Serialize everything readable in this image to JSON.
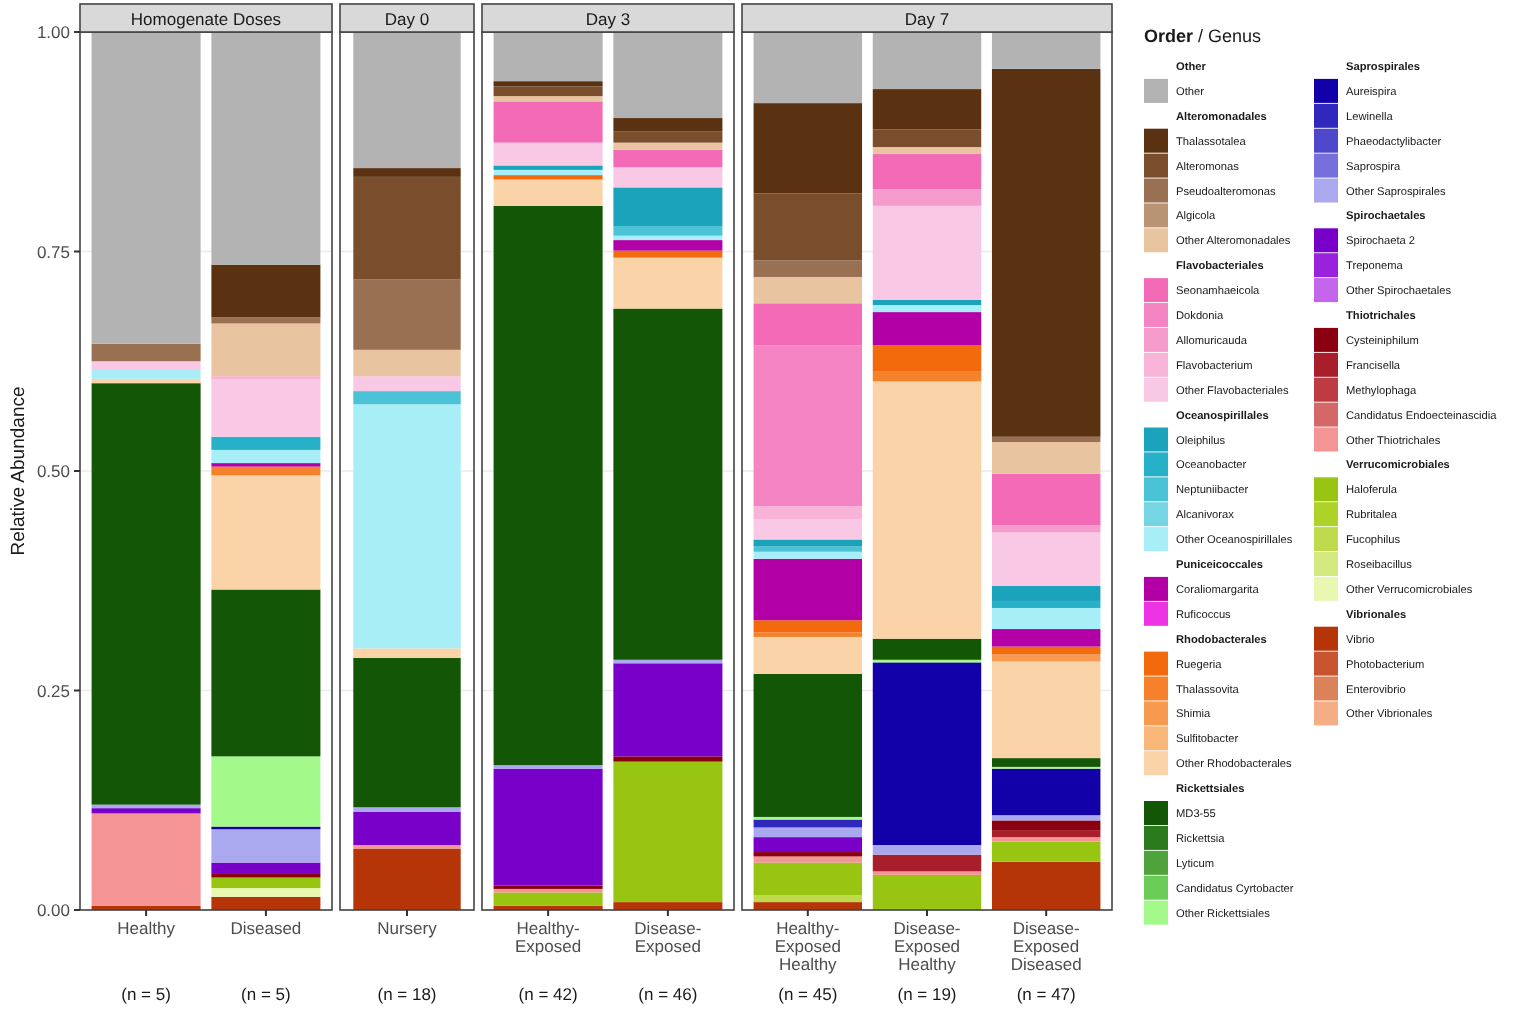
{
  "chart_data": [
    {
      "type": "bar",
      "stacked": true,
      "title": "Homogenate Doses",
      "ylabel": "Relative Abundance",
      "categories": [
        "Healthy",
        "Diseased"
      ],
      "ylim": [
        0,
        1
      ],
      "yticks": [
        {
          "value": 0,
          "label": "0.00"
        },
        {
          "value": 0.25,
          "label": "0.25"
        },
        {
          "value": 0.5,
          "label": "0.50"
        },
        {
          "value": 0.75,
          "label": "0.75"
        },
        {
          "value": 1,
          "label": "1.00"
        }
      ],
      "grid": true,
      "legend": "right",
      "legend_title": "Order / Genus",
      "annotations": [
        "(n = 5)",
        "(n = 5)",
        "Other",
        "Alteromonadales",
        "Flavobacteriales",
        "Oceanospirillales",
        "Puniceicoccales",
        "Rhodobacterales",
        "Rickettsiales",
        "Saprospirales",
        "Spirochaetales",
        "Thiotrichales",
        "Verrucomicrobiales",
        "Vibrionales"
      ],
      "series": [
        {
          "name": "Other Vibrionales",
          "color": "#f4ad85",
          "values": [
            null,
            null
          ]
        },
        {
          "name": "Enterovibrio",
          "color": "#db825b",
          "values": [
            null,
            null
          ]
        },
        {
          "name": "Photobacterium",
          "color": "#c85430",
          "values": [
            null,
            null
          ]
        },
        {
          "name": "Vibrio",
          "color": "#b53508",
          "values": [
            0.005,
            0.015
          ]
        },
        {
          "name": "Other Verrucomicrobiales",
          "color": "#e8f8b0",
          "values": [
            null,
            0.01
          ]
        },
        {
          "name": "Roseibacillus",
          "color": "#d4e97f",
          "values": [
            null,
            null
          ]
        },
        {
          "name": "Fucophilus",
          "color": "#bfdb4d",
          "values": [
            null,
            null
          ]
        },
        {
          "name": "Rubritalea",
          "color": "#aed227",
          "values": [
            null,
            null
          ]
        },
        {
          "name": "Haloferula",
          "color": "#98c512",
          "values": [
            null,
            0.012
          ]
        },
        {
          "name": "Other Thiotrichales",
          "color": "#f49494",
          "values": [
            0.105,
            null
          ]
        },
        {
          "name": "Candidatus Endoecteinascidia",
          "color": "#d46767",
          "values": [
            null,
            null
          ]
        },
        {
          "name": "Methylophaga",
          "color": "#bd3c42",
          "values": [
            null,
            null
          ]
        },
        {
          "name": "Francisella",
          "color": "#a81e2a",
          "values": [
            null,
            null
          ]
        },
        {
          "name": "Cysteiniphilum",
          "color": "#8b0010",
          "values": [
            null,
            0.005
          ]
        },
        {
          "name": "Other Spirochaetales",
          "color": "#c466ec",
          "values": [
            null,
            null
          ]
        },
        {
          "name": "Treponema",
          "color": "#9a22dc",
          "values": [
            null,
            null
          ]
        },
        {
          "name": "Spirochaeta 2",
          "color": "#7800c8",
          "values": [
            0.006,
            0.012
          ]
        },
        {
          "name": "Other Saprospirales",
          "color": "#aaa8ee",
          "values": [
            0.004,
            0.038
          ]
        },
        {
          "name": "Saprospira",
          "color": "#7770dc",
          "values": [
            null,
            null
          ]
        },
        {
          "name": "Phaeodactylibacter",
          "color": "#5048cc",
          "values": [
            null,
            null
          ]
        },
        {
          "name": "Lewinella",
          "color": "#3028bd",
          "values": [
            null,
            null
          ]
        },
        {
          "name": "Aureispira",
          "color": "#1200a8",
          "values": [
            null,
            0.003
          ]
        },
        {
          "name": "Other Rickettsiales",
          "color": "#a3fa8a",
          "values": [
            null,
            0.08
          ]
        },
        {
          "name": "Candidatus Cyrtobacter",
          "color": "#6bcc57",
          "values": [
            null,
            null
          ]
        },
        {
          "name": "Lyticum",
          "color": "#4ea33a",
          "values": [
            null,
            null
          ]
        },
        {
          "name": "Rickettsia",
          "color": "#2b7a1e",
          "values": [
            null,
            null
          ]
        },
        {
          "name": "MD3-55",
          "color": "#135606",
          "values": [
            0.48,
            0.19
          ]
        },
        {
          "name": "Other Rhodobacterales",
          "color": "#fbd3a8",
          "values": [
            0.005,
            0.13
          ]
        },
        {
          "name": "Sulfitobacter",
          "color": "#f8b679",
          "values": [
            null,
            null
          ]
        },
        {
          "name": "Shimia",
          "color": "#f79a4f",
          "values": [
            null,
            null
          ]
        },
        {
          "name": "Thalassovita",
          "color": "#f5822b",
          "values": [
            null,
            0.01
          ]
        },
        {
          "name": "Ruegeria",
          "color": "#f36a0c",
          "values": [
            null,
            null
          ]
        },
        {
          "name": "Ruficoccus",
          "color": "#ee33e5",
          "values": [
            null,
            null
          ]
        },
        {
          "name": "Coraliomargarita",
          "color": "#b300a6",
          "values": [
            null,
            0.004
          ]
        },
        {
          "name": "Other Oceanospirillales",
          "color": "#a8eef7",
          "values": [
            0.01,
            0.015
          ]
        },
        {
          "name": "Alcanivorax",
          "color": "#76d5e3",
          "values": [
            null,
            null
          ]
        },
        {
          "name": "Neptuniibacter",
          "color": "#4bc3d6",
          "values": [
            null,
            null
          ]
        },
        {
          "name": "Oceanobacter",
          "color": "#27b1c8",
          "values": [
            null,
            0.015
          ]
        },
        {
          "name": "Oleiphilus",
          "color": "#1aa3bb",
          "values": [
            null,
            null
          ]
        },
        {
          "name": "Other Flavobacteriales",
          "color": "#f8c8e4",
          "values": [
            0.01,
            0.065
          ]
        },
        {
          "name": "Flavobacterium",
          "color": "#f7b3d8",
          "values": [
            null,
            0.004
          ]
        },
        {
          "name": "Allomuricauda",
          "color": "#f59ccc",
          "values": [
            null,
            null
          ]
        },
        {
          "name": "Dokdonia",
          "color": "#f584c2",
          "values": [
            null,
            null
          ]
        },
        {
          "name": "Seonamhaeicola",
          "color": "#f36bb7",
          "values": [
            null,
            null
          ]
        },
        {
          "name": "Other Alteromonadales",
          "color": "#e8c4a0",
          "values": [
            null,
            0.06
          ]
        },
        {
          "name": "Algicola",
          "color": "#b99372",
          "values": [
            null,
            null
          ]
        },
        {
          "name": "Pseudoalteromonas",
          "color": "#9a7052",
          "values": [
            0.02,
            0.007
          ]
        },
        {
          "name": "Alteromonas",
          "color": "#7a4e2d",
          "values": [
            null,
            null
          ]
        },
        {
          "name": "Thalassotalea",
          "color": "#5a3211",
          "values": [
            null,
            0.06
          ]
        },
        {
          "name": "Other",
          "color": "#b3b3b3",
          "values": [
            0.355,
            0.265
          ]
        }
      ]
    },
    {
      "type": "bar",
      "stacked": true,
      "title": "Day 0",
      "categories": [
        "Nursery"
      ],
      "ylim": [
        0,
        1
      ],
      "yticks": [
        0,
        0.25,
        0.5,
        0.75,
        1
      ],
      "grid": true,
      "tick_labels": "x",
      "annotations": [
        "(n = 18)"
      ],
      "series": [
        {
          "color": "#b53508",
          "values": [
            0.07
          ]
        },
        {
          "color": "#f49494",
          "values": [
            0.004
          ]
        },
        {
          "color": "#7800c8",
          "values": [
            0.038
          ]
        },
        {
          "color": "#aaa8ee",
          "values": [
            0.005
          ]
        },
        {
          "color": "#135606",
          "values": [
            0.17
          ]
        },
        {
          "color": "#fbd3a8",
          "values": [
            0.011
          ]
        },
        {
          "color": "#a8eef7",
          "values": [
            0.278
          ]
        },
        {
          "color": "#4bc3d6",
          "values": [
            0.015
          ]
        },
        {
          "color": "#f8c8e4",
          "values": [
            0.017
          ]
        },
        {
          "color": "#e8c4a0",
          "values": [
            0.03
          ]
        },
        {
          "color": "#9a7052",
          "values": [
            0.08
          ]
        },
        {
          "color": "#7a4e2d",
          "values": [
            0.117
          ]
        },
        {
          "color": "#5a3211",
          "values": [
            0.01
          ]
        },
        {
          "color": "#b3b3b3",
          "values": [
            0.155
          ]
        }
      ]
    },
    {
      "type": "bar",
      "stacked": true,
      "title": "Day 3",
      "categories": [
        "Healthy-Exposed",
        "Disease-Exposed"
      ],
      "ylim": [
        0,
        1
      ],
      "yticks": [
        0,
        0.25,
        0.5,
        0.75,
        1
      ],
      "grid": true,
      "tick_labels": "x",
      "annotations": [
        "(n = 42)",
        "(n = 46)"
      ],
      "series": [
        {
          "color": "#b53508",
          "values": [
            0.005,
            0.009
          ]
        },
        {
          "color": "#98c512",
          "values": [
            0.015,
            0.16
          ]
        },
        {
          "color": "#f49494",
          "values": [
            0.004,
            null
          ]
        },
        {
          "color": "#8b0010",
          "values": [
            0.004,
            0.006
          ]
        },
        {
          "color": "#7800c8",
          "values": [
            0.133,
            0.106
          ]
        },
        {
          "color": "#aaa8ee",
          "values": [
            0.004,
            0.004
          ]
        },
        {
          "color": "#135606",
          "values": [
            0.637,
            0.4
          ]
        },
        {
          "color": "#fbd3a8",
          "values": [
            0.03,
            0.058
          ]
        },
        {
          "color": "#f36a0c",
          "values": [
            0.005,
            0.008
          ]
        },
        {
          "color": "#b300a6",
          "values": [
            null,
            0.012
          ]
        },
        {
          "color": "#a8eef7",
          "values": [
            0.006,
            0.005
          ]
        },
        {
          "color": "#4bc3d6",
          "values": [
            null,
            0.011
          ]
        },
        {
          "color": "#1aa3bb",
          "values": [
            0.005,
            0.044
          ]
        },
        {
          "color": "#f8c8e4",
          "values": [
            0.026,
            0.023
          ]
        },
        {
          "color": "#f36bb7",
          "values": [
            0.047,
            0.02
          ]
        },
        {
          "color": "#e8c4a0",
          "values": [
            0.006,
            0.008
          ]
        },
        {
          "color": "#7a4e2d",
          "values": [
            0.011,
            0.013
          ]
        },
        {
          "color": "#5a3211",
          "values": [
            0.006,
            0.015
          ]
        },
        {
          "color": "#b3b3b3",
          "values": [
            0.056,
            0.1
          ]
        }
      ]
    },
    {
      "type": "bar",
      "stacked": true,
      "title": "Day 7",
      "categories": [
        "Healthy-Exposed Healthy",
        "Disease-Exposed Healthy",
        "Disease-Exposed Diseased"
      ],
      "ylim": [
        0,
        1
      ],
      "yticks": [
        0,
        0.25,
        0.5,
        0.75,
        1
      ],
      "grid": true,
      "tick_labels": "x",
      "annotations": [
        "(n = 45)",
        "(n = 19)",
        "(n = 47)"
      ],
      "series": [
        {
          "color": "#b53508",
          "values": [
            0.009,
            null,
            0.055
          ]
        },
        {
          "color": "#bfdb4d",
          "values": [
            0.008,
            null,
            null
          ]
        },
        {
          "color": "#98c512",
          "values": [
            0.037,
            0.04,
            0.023
          ]
        },
        {
          "color": "#f49494",
          "values": [
            0.007,
            0.004,
            0.005
          ]
        },
        {
          "color": "#a81e2a",
          "values": [
            null,
            0.019,
            0.008
          ]
        },
        {
          "color": "#8b0010",
          "values": [
            0.005,
            null,
            0.011
          ]
        },
        {
          "color": "#7800c8",
          "values": [
            0.017,
            null,
            null
          ]
        },
        {
          "color": "#aaa8ee",
          "values": [
            0.011,
            0.011,
            0.006
          ]
        },
        {
          "color": "#3028bd",
          "values": [
            0.009,
            null,
            null
          ]
        },
        {
          "color": "#1200a8",
          "values": [
            null,
            0.208,
            0.053
          ]
        },
        {
          "color": "#a3fa8a",
          "values": [
            0.003,
            0.003,
            0.002
          ]
        },
        {
          "color": "#135606",
          "values": [
            0.163,
            0.024,
            0.01
          ]
        },
        {
          "color": "#fbd3a8",
          "values": [
            0.042,
            0.293,
            0.11
          ]
        },
        {
          "color": "#f79a4f",
          "values": [
            null,
            null,
            0.008
          ]
        },
        {
          "color": "#f5822b",
          "values": [
            0.005,
            0.011,
            null
          ]
        },
        {
          "color": "#f36a0c",
          "values": [
            0.014,
            0.03,
            0.009
          ]
        },
        {
          "color": "#b300a6",
          "values": [
            0.07,
            0.038,
            0.02
          ]
        },
        {
          "color": "#a8eef7",
          "values": [
            0.008,
            0.008,
            0.024
          ]
        },
        {
          "color": "#4bc3d6",
          "values": [
            0.006,
            null,
            null
          ]
        },
        {
          "color": "#27b1c8",
          "values": [
            null,
            null,
            0.008
          ]
        },
        {
          "color": "#1aa3bb",
          "values": [
            0.008,
            0.006,
            0.017
          ]
        },
        {
          "color": "#f8c8e4",
          "values": [
            0.023,
            0.107,
            0.061
          ]
        },
        {
          "color": "#f7b3d8",
          "values": [
            0.015,
            null,
            null
          ]
        },
        {
          "color": "#f59ccc",
          "values": [
            null,
            0.019,
            0.008
          ]
        },
        {
          "color": "#f584c2",
          "values": [
            0.183,
            null,
            null
          ]
        },
        {
          "color": "#f36bb7",
          "values": [
            0.048,
            0.04,
            0.059
          ]
        },
        {
          "color": "#e8c4a0",
          "values": [
            0.03,
            0.008,
            0.036
          ]
        },
        {
          "color": "#9a7052",
          "values": [
            0.019,
            null,
            0.006
          ]
        },
        {
          "color": "#7a4e2d",
          "values": [
            0.076,
            0.02,
            null
          ]
        },
        {
          "color": "#5a3211",
          "values": [
            0.103,
            0.046,
            0.419
          ]
        },
        {
          "color": "#b3b3b3",
          "values": [
            0.081,
            0.065,
            0.042
          ]
        }
      ]
    }
  ]
}
